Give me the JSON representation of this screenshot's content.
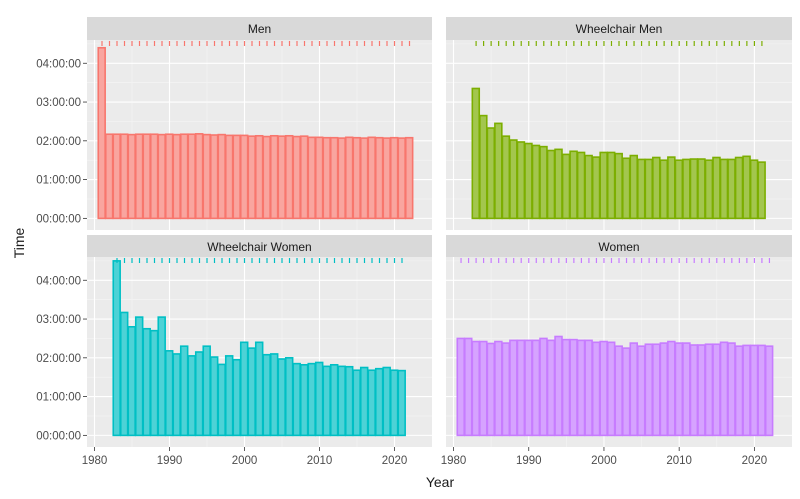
{
  "chart_data": {
    "type": "bar",
    "xlabel": "Year",
    "ylabel": "Time",
    "y_tick_labels": [
      "00:00:00",
      "01:00:00",
      "02:00:00",
      "03:00:00",
      "04:00:00"
    ],
    "x_tick_labels": [
      "1980",
      "1990",
      "2000",
      "2010",
      "2020"
    ],
    "xlim": [
      1979,
      2025
    ],
    "ylim_hours": [
      -0.3,
      4.6
    ],
    "facets": [
      {
        "label": "Men",
        "color": "#F8766D",
        "fill": "#F9A59F",
        "rug_years": [
          1981,
          1982,
          1983,
          1984,
          1985,
          1986,
          1987,
          1988,
          1989,
          1990,
          1991,
          1992,
          1993,
          1994,
          1995,
          1996,
          1997,
          1998,
          1999,
          2000,
          2001,
          2002,
          2003,
          2004,
          2005,
          2006,
          2007,
          2008,
          2009,
          2010,
          2011,
          2012,
          2013,
          2014,
          2015,
          2016,
          2017,
          2018,
          2019,
          2020,
          2021,
          2022
        ],
        "years": [
          1981,
          1982,
          1983,
          1984,
          1985,
          1986,
          1987,
          1988,
          1989,
          1990,
          1991,
          1992,
          1993,
          1994,
          1995,
          1996,
          1997,
          1998,
          1999,
          2000,
          2001,
          2002,
          2003,
          2004,
          2005,
          2006,
          2007,
          2008,
          2009,
          2010,
          2011,
          2012,
          2013,
          2014,
          2015,
          2016,
          2017,
          2018,
          2019,
          2020,
          2021,
          2022
        ],
        "hours": [
          4.4,
          2.17,
          2.17,
          2.17,
          2.16,
          2.17,
          2.17,
          2.17,
          2.16,
          2.17,
          2.16,
          2.17,
          2.17,
          2.18,
          2.16,
          2.15,
          2.16,
          2.14,
          2.14,
          2.14,
          2.12,
          2.13,
          2.11,
          2.13,
          2.12,
          2.13,
          2.11,
          2.12,
          2.09,
          2.09,
          2.08,
          2.08,
          2.07,
          2.09,
          2.08,
          2.07,
          2.09,
          2.08,
          2.07,
          2.08,
          2.07,
          2.08
        ]
      },
      {
        "label": "Wheelchair Men",
        "color": "#7CAE00",
        "fill": "#A3C64E",
        "rug_years": [
          1983,
          1984,
          1985,
          1986,
          1987,
          1988,
          1989,
          1990,
          1991,
          1992,
          1993,
          1994,
          1995,
          1996,
          1997,
          1998,
          1999,
          2000,
          2001,
          2002,
          2003,
          2004,
          2005,
          2006,
          2007,
          2008,
          2009,
          2010,
          2011,
          2012,
          2013,
          2014,
          2015,
          2016,
          2017,
          2018,
          2019,
          2020,
          2021
        ],
        "years": [
          1983,
          1984,
          1985,
          1986,
          1987,
          1988,
          1989,
          1990,
          1991,
          1992,
          1993,
          1994,
          1995,
          1996,
          1997,
          1998,
          1999,
          2000,
          2001,
          2002,
          2003,
          2004,
          2005,
          2006,
          2007,
          2008,
          2009,
          2010,
          2011,
          2012,
          2013,
          2014,
          2015,
          2016,
          2017,
          2018,
          2019,
          2020,
          2021
        ],
        "hours": [
          3.35,
          2.65,
          2.33,
          2.45,
          2.12,
          2.02,
          1.97,
          1.93,
          1.88,
          1.85,
          1.75,
          1.78,
          1.65,
          1.73,
          1.7,
          1.62,
          1.58,
          1.7,
          1.7,
          1.67,
          1.55,
          1.62,
          1.52,
          1.52,
          1.57,
          1.5,
          1.58,
          1.5,
          1.52,
          1.53,
          1.53,
          1.5,
          1.57,
          1.52,
          1.52,
          1.57,
          1.6,
          1.5,
          1.45
        ]
      },
      {
        "label": "Wheelchair Women",
        "color": "#00BFC4",
        "fill": "#4DD2D6",
        "rug_years": [
          1983,
          1984,
          1985,
          1986,
          1987,
          1988,
          1989,
          1990,
          1991,
          1992,
          1993,
          1994,
          1995,
          1996,
          1997,
          1998,
          1999,
          2000,
          2001,
          2002,
          2003,
          2004,
          2005,
          2006,
          2007,
          2008,
          2009,
          2010,
          2011,
          2012,
          2013,
          2014,
          2015,
          2016,
          2017,
          2018,
          2019,
          2020,
          2021
        ],
        "years": [
          1983,
          1984,
          1985,
          1986,
          1987,
          1988,
          1989,
          1990,
          1991,
          1992,
          1993,
          1994,
          1995,
          1996,
          1997,
          1998,
          1999,
          2000,
          2001,
          2002,
          2003,
          2004,
          2005,
          2006,
          2007,
          2008,
          2009,
          2010,
          2011,
          2012,
          2013,
          2014,
          2015,
          2016,
          2017,
          2018,
          2019,
          2020,
          2021
        ],
        "hours": [
          4.5,
          3.17,
          2.8,
          3.05,
          2.75,
          2.7,
          3.05,
          2.18,
          2.1,
          2.3,
          2.05,
          2.15,
          2.3,
          2.02,
          1.83,
          2.05,
          1.95,
          2.4,
          2.25,
          2.4,
          2.08,
          2.1,
          1.97,
          2.0,
          1.85,
          1.82,
          1.85,
          1.88,
          1.78,
          1.82,
          1.78,
          1.77,
          1.68,
          1.75,
          1.68,
          1.72,
          1.75,
          1.68,
          1.67
        ]
      },
      {
        "label": "Women",
        "color": "#C77CFF",
        "fill": "#D6A3FF",
        "rug_years": [
          1981,
          1982,
          1983,
          1984,
          1985,
          1986,
          1987,
          1988,
          1989,
          1990,
          1991,
          1992,
          1993,
          1994,
          1995,
          1996,
          1997,
          1998,
          1999,
          2000,
          2001,
          2002,
          2003,
          2004,
          2005,
          2006,
          2007,
          2008,
          2009,
          2010,
          2011,
          2012,
          2013,
          2014,
          2015,
          2016,
          2017,
          2018,
          2019,
          2020,
          2021,
          2022
        ],
        "years": [
          1981,
          1982,
          1983,
          1984,
          1985,
          1986,
          1987,
          1988,
          1989,
          1990,
          1991,
          1992,
          1993,
          1994,
          1995,
          1996,
          1997,
          1998,
          1999,
          2000,
          2001,
          2002,
          2003,
          2004,
          2005,
          2006,
          2007,
          2008,
          2009,
          2010,
          2011,
          2012,
          2013,
          2014,
          2015,
          2016,
          2017,
          2018,
          2019,
          2020,
          2021,
          2022
        ],
        "hours": [
          2.5,
          2.5,
          2.42,
          2.42,
          2.37,
          2.42,
          2.38,
          2.45,
          2.45,
          2.45,
          2.45,
          2.5,
          2.45,
          2.55,
          2.47,
          2.47,
          2.45,
          2.45,
          2.4,
          2.42,
          2.4,
          2.3,
          2.25,
          2.38,
          2.3,
          2.35,
          2.35,
          2.38,
          2.42,
          2.38,
          2.38,
          2.33,
          2.33,
          2.35,
          2.35,
          2.4,
          2.38,
          2.3,
          2.32,
          2.32,
          2.32,
          2.3
        ]
      }
    ]
  }
}
